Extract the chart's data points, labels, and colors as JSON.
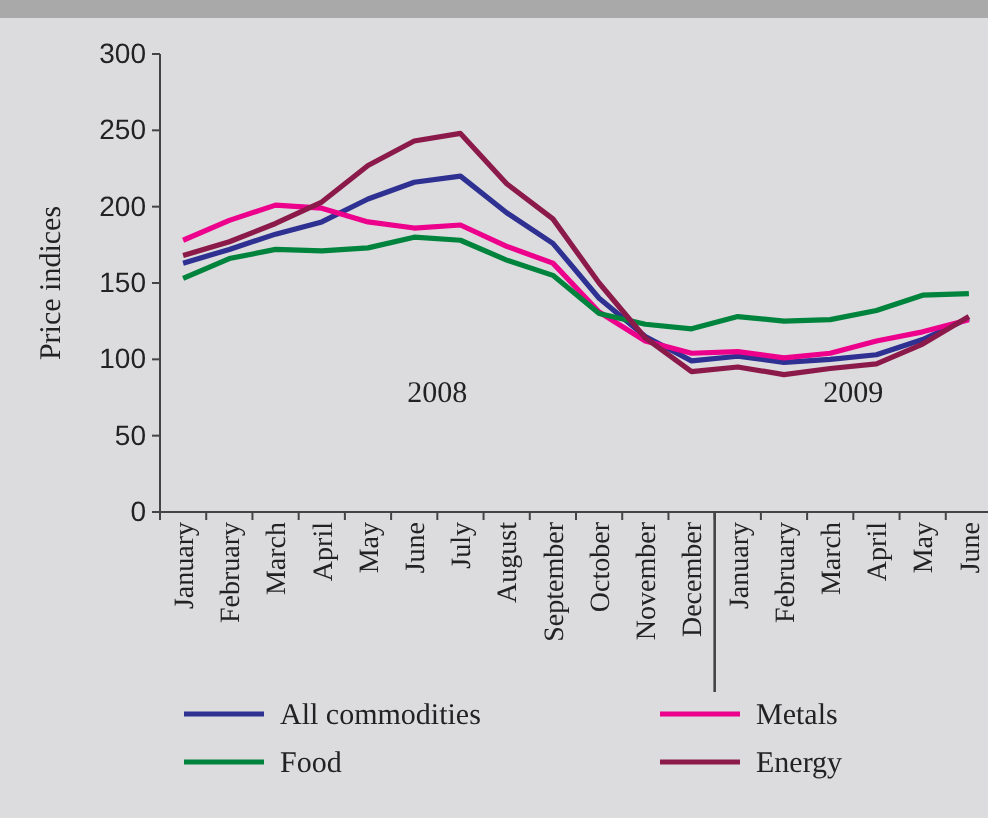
{
  "chart_data": {
    "type": "line",
    "ylabel": "Price indices",
    "categories": [
      "January",
      "February",
      "March",
      "April",
      "May",
      "June",
      "July",
      "August",
      "September",
      "October",
      "November",
      "December",
      "January",
      "February",
      "March",
      "April",
      "May",
      "June"
    ],
    "series": [
      {
        "name": "All commodities",
        "color": "#2e3192",
        "values": [
          163,
          172,
          182,
          190,
          205,
          216,
          220,
          196,
          176,
          140,
          115,
          99,
          102,
          98,
          100,
          103,
          113,
          127
        ]
      },
      {
        "name": "Metals",
        "color": "#ec008c",
        "values": [
          178,
          191,
          201,
          199,
          190,
          186,
          188,
          174,
          163,
          131,
          112,
          104,
          105,
          101,
          104,
          112,
          118,
          126
        ]
      },
      {
        "name": "Food",
        "color": "#00843d",
        "values": [
          153,
          166,
          172,
          171,
          173,
          180,
          178,
          165,
          155,
          130,
          123,
          120,
          128,
          125,
          126,
          132,
          142,
          143
        ]
      },
      {
        "name": "Energy",
        "color": "#8b1a4a",
        "values": [
          168,
          177,
          189,
          203,
          227,
          243,
          248,
          215,
          192,
          150,
          114,
          92,
          95,
          90,
          94,
          97,
          110,
          128
        ]
      }
    ],
    "ylim": [
      0,
      300
    ],
    "yticks": [
      0,
      50,
      100,
      150,
      200,
      250,
      300
    ],
    "grid": false,
    "legend": "bottom",
    "marker": "none",
    "line_style": "solid",
    "annotations": [
      "2008",
      "2009"
    ]
  }
}
